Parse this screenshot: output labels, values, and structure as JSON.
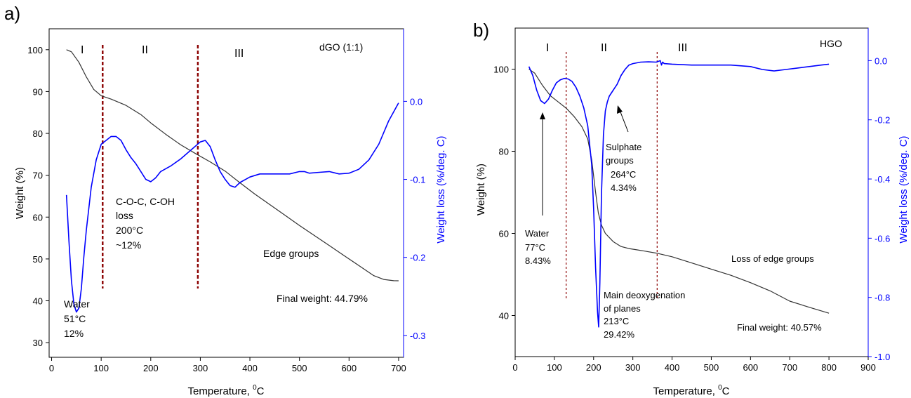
{
  "chart_data": [
    {
      "panel_label": "a)",
      "type": "line",
      "title": "dGO (1:1)",
      "xlabel": "Temperature, ",
      "xlabel_sup": "0",
      "xlabel_unit": "C",
      "ylabel": "Weight (%)",
      "ylabel_right": "Weight loss (%/deg. C)",
      "xlim": [
        -5,
        710
      ],
      "ylim": [
        26.5,
        105
      ],
      "ylim_right": [
        -0.328,
        0.093
      ],
      "xticks": [
        0,
        100,
        200,
        300,
        400,
        500,
        600,
        700
      ],
      "yticks": [
        30,
        40,
        50,
        60,
        70,
        80,
        90,
        100
      ],
      "yticks_right": [
        -0.3,
        -0.2,
        -0.1,
        0.0
      ],
      "yticks_right_labels": [
        "-0.3",
        "-0.2",
        "-0.1",
        "0.0"
      ],
      "region_dividers_x": [
        103,
        295
      ],
      "regions": [
        "I",
        "II",
        "III"
      ],
      "colors": {
        "weight": "#333333",
        "dtg": "#0000ff",
        "divider": "#8b0000"
      },
      "series": [
        {
          "axis": "left",
          "x": [
            30,
            40,
            55,
            70,
            85,
            100,
            120,
            150,
            180,
            200,
            230,
            260,
            290,
            320,
            350,
            380,
            410,
            440,
            470,
            500,
            530,
            560,
            590,
            620,
            650,
            670,
            690,
            700
          ],
          "y": [
            100,
            99.5,
            97,
            93.5,
            90.5,
            89,
            88.2,
            86.7,
            84.5,
            82.5,
            79.8,
            77.3,
            75.2,
            73.2,
            71,
            68.2,
            65.5,
            63,
            60.5,
            58,
            55.6,
            53.2,
            50.8,
            48.4,
            46,
            45.1,
            44.8,
            44.79
          ]
        },
        {
          "axis": "right",
          "x": [
            30,
            35,
            40,
            45,
            50,
            55,
            60,
            65,
            70,
            80,
            90,
            100,
            110,
            120,
            130,
            140,
            150,
            160,
            170,
            180,
            190,
            200,
            210,
            220,
            240,
            260,
            280,
            300,
            310,
            320,
            330,
            340,
            350,
            360,
            370,
            380,
            400,
            420,
            440,
            460,
            480,
            500,
            510,
            520,
            540,
            560,
            580,
            600,
            620,
            640,
            660,
            680,
            700
          ],
          "y": [
            -0.12,
            -0.18,
            -0.23,
            -0.26,
            -0.27,
            -0.265,
            -0.24,
            -0.2,
            -0.165,
            -0.11,
            -0.075,
            -0.055,
            -0.05,
            -0.045,
            -0.045,
            -0.05,
            -0.062,
            -0.072,
            -0.08,
            -0.09,
            -0.1,
            -0.103,
            -0.098,
            -0.09,
            -0.083,
            -0.074,
            -0.063,
            -0.052,
            -0.05,
            -0.058,
            -0.075,
            -0.09,
            -0.1,
            -0.108,
            -0.11,
            -0.104,
            -0.097,
            -0.093,
            -0.093,
            -0.093,
            -0.093,
            -0.09,
            -0.09,
            -0.092,
            -0.091,
            -0.09,
            -0.093,
            -0.092,
            -0.087,
            -0.075,
            -0.055,
            -0.025,
            -0.002
          ]
        }
      ],
      "annotations": {
        "water": [
          "Water",
          "51°C",
          "12%"
        ],
        "coc": [
          "C-O-C, C-OH",
          "loss",
          "200°C",
          "~12%"
        ],
        "edge": "Edge groups",
        "final": "Final weight: 44.79%"
      }
    },
    {
      "panel_label": "b)",
      "type": "line",
      "title": "HGO",
      "xlabel": "Temperature, ",
      "xlabel_sup": "0",
      "xlabel_unit": "C",
      "ylabel": "Weight (%)",
      "ylabel_right": "Weight loss (%/deg. C)",
      "xlim": [
        0,
        900
      ],
      "ylim": [
        30,
        110
      ],
      "ylim_right": [
        -1.0,
        0.11
      ],
      "xticks": [
        0,
        100,
        200,
        300,
        400,
        500,
        600,
        700,
        800,
        900
      ],
      "yticks": [
        40,
        60,
        80,
        100
      ],
      "yticks_right": [
        -1.0,
        -0.8,
        -0.6,
        -0.4,
        -0.2,
        0.0
      ],
      "yticks_right_labels": [
        "-1.0",
        "-0.8",
        "-0.6",
        "-0.4",
        "-0.2",
        "0.0"
      ],
      "region_dividers_x": [
        130,
        362
      ],
      "regions": [
        "I",
        "II",
        "III"
      ],
      "colors": {
        "weight": "#333333",
        "dtg": "#0000ff",
        "divider": "#8b0000"
      },
      "series": [
        {
          "axis": "left",
          "x": [
            35,
            50,
            70,
            90,
            110,
            130,
            150,
            170,
            185,
            195,
            205,
            212,
            220,
            230,
            250,
            270,
            290,
            310,
            330,
            360,
            400,
            450,
            500,
            550,
            600,
            650,
            700,
            750,
            800
          ],
          "y": [
            100,
            99,
            96,
            93.5,
            92,
            90.5,
            88.5,
            86,
            83,
            78,
            70,
            65,
            62,
            60,
            58,
            56.8,
            56.3,
            56,
            55.7,
            55.2,
            54.3,
            52.8,
            51.3,
            49.8,
            48,
            46,
            43.5,
            42,
            40.57
          ]
        },
        {
          "axis": "right",
          "x": [
            35,
            45,
            55,
            65,
            75,
            85,
            95,
            105,
            115,
            125,
            135,
            145,
            155,
            165,
            175,
            185,
            195,
            200,
            205,
            210,
            213,
            216,
            220,
            225,
            230,
            235,
            240,
            250,
            260,
            270,
            280,
            290,
            300,
            320,
            340,
            360,
            370,
            373,
            376,
            380,
            400,
            450,
            500,
            550,
            600,
            630,
            660,
            690,
            720,
            750,
            780,
            800
          ],
          "y": [
            -0.02,
            -0.05,
            -0.1,
            -0.135,
            -0.145,
            -0.13,
            -0.1,
            -0.075,
            -0.065,
            -0.06,
            -0.062,
            -0.07,
            -0.09,
            -0.12,
            -0.16,
            -0.22,
            -0.35,
            -0.5,
            -0.7,
            -0.85,
            -0.9,
            -0.75,
            -0.45,
            -0.25,
            -0.17,
            -0.14,
            -0.12,
            -0.1,
            -0.08,
            -0.05,
            -0.03,
            -0.015,
            -0.01,
            -0.005,
            -0.004,
            -0.005,
            -0.0,
            -0.015,
            -0.005,
            -0.01,
            -0.012,
            -0.015,
            -0.015,
            -0.015,
            -0.02,
            -0.03,
            -0.035,
            -0.03,
            -0.025,
            -0.02,
            -0.015,
            -0.012
          ]
        }
      ],
      "annotations": {
        "water": [
          "Water",
          "77°C",
          "8.43%"
        ],
        "sulphate": [
          "Sulphate",
          "groups",
          "264°C",
          "4.34%"
        ],
        "main": [
          "Main deoxygenation",
          "of planes",
          "213°C",
          "29.42%"
        ],
        "edge": "Loss of edge groups",
        "final": "Final weight: 40.57%"
      }
    }
  ]
}
